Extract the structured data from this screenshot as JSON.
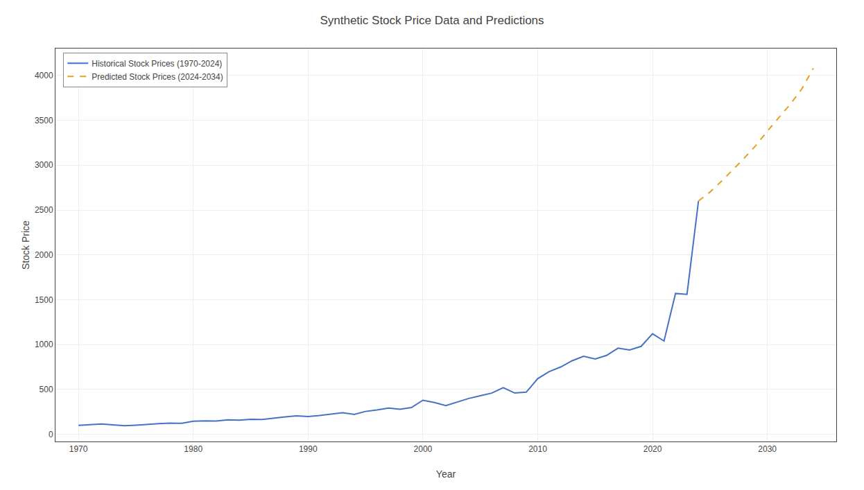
{
  "chart_data": {
    "type": "line",
    "title": "Synthetic Stock Price Data and Predictions",
    "xlabel": "Year",
    "ylabel": "Stock Price",
    "series": [
      {
        "name": "Historical Stock Prices (1970-2024)",
        "color": "#4472c4",
        "line_style": "solid",
        "x": [
          1970,
          1971,
          1972,
          1973,
          1974,
          1975,
          1976,
          1977,
          1978,
          1979,
          1980,
          1981,
          1982,
          1983,
          1984,
          1985,
          1986,
          1987,
          1988,
          1989,
          1990,
          1991,
          1992,
          1993,
          1994,
          1995,
          1996,
          1997,
          1998,
          1999,
          2000,
          2001,
          2002,
          2003,
          2004,
          2005,
          2006,
          2007,
          2008,
          2009,
          2010,
          2011,
          2012,
          2013,
          2014,
          2015,
          2016,
          2017,
          2018,
          2019,
          2020,
          2021,
          2022,
          2023,
          2024
        ],
        "values": [
          100,
          108,
          115,
          105,
          95,
          102,
          112,
          118,
          125,
          122,
          145,
          150,
          148,
          162,
          158,
          168,
          165,
          182,
          195,
          205,
          198,
          210,
          225,
          240,
          222,
          255,
          272,
          292,
          280,
          298,
          380,
          355,
          320,
          360,
          400,
          430,
          460,
          520,
          460,
          470,
          620,
          700,
          750,
          820,
          870,
          840,
          880,
          960,
          940,
          980,
          1120,
          1040,
          1570,
          1560,
          2600
        ]
      },
      {
        "name": "Predicted Stock Prices (2024-2034)",
        "color": "#e8a020",
        "line_style": "dashed",
        "x": [
          2024,
          2025,
          2026,
          2027,
          2028,
          2029,
          2030,
          2031,
          2032,
          2033,
          2034
        ],
        "values": [
          2600,
          2700,
          2820,
          2950,
          3080,
          3220,
          3380,
          3530,
          3680,
          3850,
          4080
        ]
      }
    ],
    "xlim": [
      1968,
      2036
    ],
    "ylim": [
      -80,
      4300
    ],
    "xticks": [
      1970,
      1980,
      1990,
      2000,
      2010,
      2020,
      2030
    ],
    "yticks": [
      0,
      500,
      1000,
      1500,
      2000,
      2500,
      3000,
      3500,
      4000
    ],
    "grid": true,
    "legend": "upper left"
  }
}
